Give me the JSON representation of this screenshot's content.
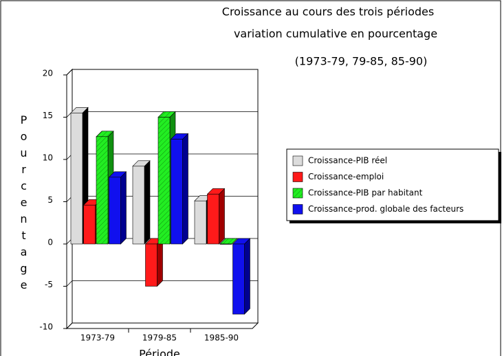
{
  "chart_data": {
    "type": "bar3d",
    "title": "Croissance au cours des trois périodes",
    "subtitle": "variation cumulative en pourcentage",
    "subtitle2": "(1973-79, 79-85, 85-90)",
    "y_label": "Pourcentage",
    "x_label": "Période",
    "categories": [
      "1973-79",
      "1979-85",
      "1985-90"
    ],
    "series": [
      {
        "name": "Croissance-PIB réel",
        "color": "#dcdcdc",
        "side_color": "#000000",
        "values": [
          15.5,
          9.2,
          5.1
        ]
      },
      {
        "name": "Croissance-emploi",
        "color": "#ff1a1a",
        "side_color": "#a00000",
        "values": [
          4.6,
          -5,
          5.9
        ]
      },
      {
        "name": "Croissance-PIB par habitant",
        "color": "#22ee22",
        "side_color": "#109010",
        "hatch": true,
        "values": [
          12.7,
          15,
          0
        ]
      },
      {
        "name": "Croissance-prod. globale des facteurs",
        "color": "#1010ee",
        "side_color": "#000090",
        "values": [
          7.9,
          12.4,
          -8.3
        ]
      }
    ],
    "ylim": [
      -10,
      20
    ],
    "yticks": [
      -10,
      -5,
      0,
      5,
      10,
      15,
      20
    ],
    "grid": true
  }
}
